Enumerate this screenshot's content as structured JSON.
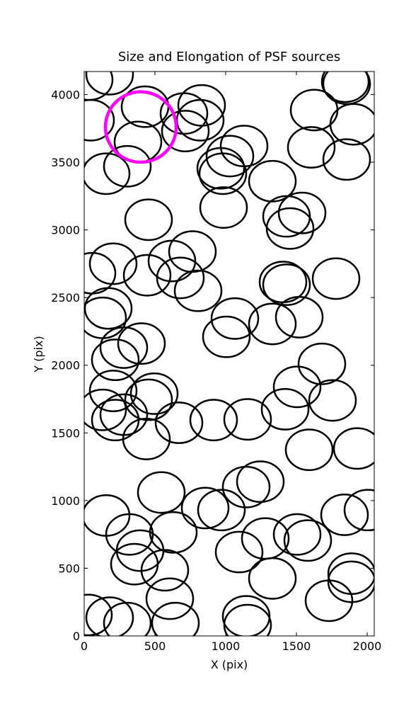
{
  "chart_data": {
    "type": "ellipses",
    "title": "Size and Elongation of PSF sources",
    "xlabel": "X (pix)",
    "ylabel": "Y (pix)",
    "xlim": [
      0,
      2050
    ],
    "ylim": [
      0,
      4170
    ],
    "xticks": [
      0,
      500,
      1000,
      1500,
      2000
    ],
    "yticks": [
      0,
      500,
      1000,
      1500,
      2000,
      2500,
      3000,
      3500,
      4000
    ],
    "color": "#000000",
    "width": 330,
    "height": 300,
    "x": [
      180,
      35,
      430,
      380,
      45,
      305,
      155,
      705,
      715,
      830,
      820,
      1130,
      1030,
      965,
      980,
      1330,
      1625,
      1605,
      1855,
      1845,
      1905,
      1855,
      985,
      1430,
      1540,
      1455,
      455,
      765,
      620,
      205,
      55,
      445,
      680,
      805,
      1405,
      1430,
      1780,
      170,
      130,
      1065,
      1005,
      1330,
      1520,
      280,
      405,
      220,
      1680,
      1505,
      205,
      495,
      455,
      1755,
      130,
      280,
      220,
      1420,
      670,
      915,
      1155,
      440,
      1590,
      1930,
      545,
      855,
      155,
      970,
      1145,
      1245,
      1840,
      2005,
      630,
      320,
      1095,
      1280,
      1505,
      1580,
      395,
      355,
      570,
      1330,
      1890,
      1890,
      605,
      1730,
      30,
      180,
      305,
      1145,
      1155,
      645
    ],
    "y": [
      4150,
      4110,
      3910,
      3650,
      3810,
      3470,
      3415,
      3860,
      3730,
      3920,
      3810,
      3620,
      3545,
      3455,
      3415,
      3360,
      3885,
      3610,
      4080,
      4095,
      3780,
      3520,
      3165,
      3100,
      3125,
      3010,
      3075,
      2840,
      2770,
      2750,
      2680,
      2665,
      2645,
      2550,
      2615,
      2595,
      2640,
      2420,
      2350,
      2345,
      2210,
      2305,
      2355,
      2130,
      2160,
      2040,
      2010,
      1840,
      1810,
      1790,
      1745,
      1740,
      1670,
      1635,
      1595,
      1675,
      1575,
      1595,
      1600,
      1455,
      1375,
      1385,
      1060,
      945,
      890,
      930,
      1100,
      1140,
      895,
      930,
      765,
      750,
      620,
      720,
      750,
      705,
      630,
      530,
      485,
      425,
      460,
      400,
      275,
      260,
      155,
      135,
      95,
      145,
      80,
      95
    ],
    "highlight": {
      "x": 400,
      "y": 3760,
      "width": 500,
      "height": 520,
      "color": "#ff00ff"
    }
  }
}
